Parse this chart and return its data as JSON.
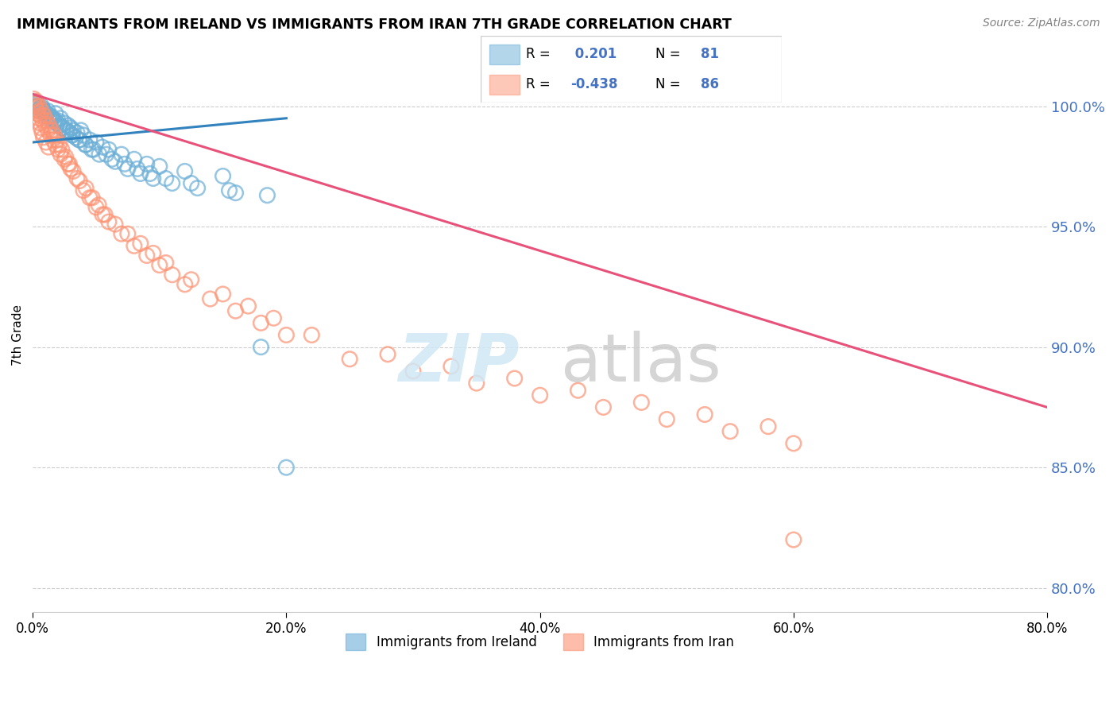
{
  "title": "IMMIGRANTS FROM IRELAND VS IMMIGRANTS FROM IRAN 7TH GRADE CORRELATION CHART",
  "source": "Source: ZipAtlas.com",
  "ylabel": "7th Grade",
  "y_ticks": [
    80.0,
    85.0,
    90.0,
    95.0,
    100.0
  ],
  "xlim": [
    0.0,
    80.0
  ],
  "ylim": [
    79.0,
    102.0
  ],
  "ireland_color": "#6baed6",
  "iran_color": "#fc9272",
  "ireland_R": 0.201,
  "ireland_N": 81,
  "iran_R": -0.438,
  "iran_N": 86,
  "ireland_line_color": "#3182bd",
  "iran_line_color": "#e8527a",
  "legend_ireland": "Immigrants from Ireland",
  "legend_iran": "Immigrants from Iran",
  "ireland_x": [
    0.2,
    0.3,
    0.5,
    0.7,
    0.8,
    1.0,
    1.2,
    1.4,
    1.6,
    1.8,
    2.0,
    2.2,
    2.5,
    2.8,
    3.0,
    3.2,
    3.5,
    3.8,
    4.0,
    4.5,
    5.0,
    5.5,
    6.0,
    7.0,
    8.0,
    9.0,
    10.0,
    12.0,
    15.0,
    18.0,
    20.0,
    0.1,
    0.4,
    0.6,
    0.9,
    1.1,
    1.3,
    1.5,
    1.7,
    1.9,
    2.1,
    2.3,
    2.6,
    2.9,
    3.1,
    3.4,
    3.7,
    4.2,
    4.8,
    5.8,
    6.5,
    7.5,
    8.5,
    9.5,
    11.0,
    13.0,
    16.0,
    0.15,
    0.35,
    0.55,
    0.75,
    0.95,
    1.25,
    1.75,
    2.15,
    2.65,
    3.15,
    3.65,
    4.15,
    4.65,
    5.25,
    6.25,
    7.25,
    8.25,
    9.25,
    10.5,
    12.5,
    15.5,
    18.5,
    2.4,
    2.7
  ],
  "ireland_y": [
    100.0,
    100.1,
    99.8,
    100.0,
    99.9,
    99.7,
    99.8,
    99.6,
    99.5,
    99.7,
    99.4,
    99.5,
    99.3,
    99.2,
    99.1,
    99.0,
    98.9,
    99.0,
    98.8,
    98.6,
    98.5,
    98.3,
    98.2,
    98.0,
    97.8,
    97.6,
    97.5,
    97.3,
    97.1,
    90.0,
    85.0,
    100.2,
    100.0,
    99.9,
    99.8,
    99.7,
    99.6,
    99.5,
    99.4,
    99.3,
    99.2,
    99.1,
    99.0,
    98.9,
    98.8,
    98.7,
    98.6,
    98.4,
    98.2,
    98.0,
    97.7,
    97.4,
    97.2,
    97.0,
    96.8,
    96.6,
    96.4,
    100.1,
    100.0,
    99.9,
    99.8,
    99.7,
    99.5,
    99.4,
    99.2,
    99.0,
    98.8,
    98.6,
    98.4,
    98.2,
    98.0,
    97.8,
    97.6,
    97.4,
    97.2,
    97.0,
    96.8,
    96.5,
    96.3,
    99.1,
    99.0
  ],
  "iran_x": [
    0.2,
    0.4,
    0.6,
    0.8,
    1.0,
    1.2,
    1.4,
    1.6,
    1.8,
    2.0,
    2.2,
    2.5,
    2.8,
    3.0,
    3.5,
    4.0,
    4.5,
    5.0,
    5.5,
    6.0,
    7.0,
    8.0,
    9.0,
    10.0,
    11.0,
    12.0,
    14.0,
    16.0,
    18.0,
    20.0,
    25.0,
    30.0,
    35.0,
    40.0,
    45.0,
    50.0,
    55.0,
    60.0,
    0.3,
    0.5,
    0.7,
    0.9,
    1.1,
    1.3,
    1.5,
    1.7,
    1.9,
    2.1,
    2.3,
    2.6,
    2.9,
    3.2,
    3.7,
    4.2,
    4.7,
    5.2,
    5.7,
    6.5,
    7.5,
    8.5,
    9.5,
    10.5,
    12.5,
    15.0,
    17.0,
    19.0,
    22.0,
    28.0,
    33.0,
    38.0,
    43.0,
    48.0,
    53.0,
    58.0,
    0.1,
    0.15,
    0.25,
    0.35,
    0.45,
    0.55,
    0.65,
    0.75,
    0.85,
    1.05,
    1.25
  ],
  "iran_y": [
    100.0,
    99.8,
    99.6,
    99.4,
    99.2,
    99.0,
    98.8,
    98.6,
    98.4,
    98.2,
    98.0,
    97.8,
    97.6,
    97.4,
    97.0,
    96.5,
    96.2,
    95.8,
    95.5,
    95.2,
    94.7,
    94.2,
    93.8,
    93.4,
    93.0,
    92.6,
    92.0,
    91.5,
    91.0,
    90.5,
    89.5,
    89.0,
    88.5,
    88.0,
    87.5,
    87.0,
    86.5,
    86.0,
    100.2,
    100.0,
    99.8,
    99.6,
    99.4,
    99.2,
    99.0,
    98.8,
    98.6,
    98.4,
    98.2,
    97.9,
    97.6,
    97.3,
    96.9,
    96.6,
    96.2,
    95.9,
    95.5,
    95.1,
    94.7,
    94.3,
    93.9,
    93.5,
    92.8,
    92.2,
    91.7,
    91.2,
    90.5,
    89.7,
    89.2,
    88.7,
    88.2,
    87.7,
    87.2,
    86.7,
    100.3,
    100.1,
    99.9,
    99.7,
    99.5,
    99.3,
    99.1,
    98.9,
    98.7,
    98.5,
    98.3
  ],
  "iran_outlier_x": [
    60.0
  ],
  "iran_outlier_y": [
    82.0
  ],
  "ireland_line_x0": 0.0,
  "ireland_line_y0": 98.5,
  "ireland_line_x1": 20.0,
  "ireland_line_y1": 99.5,
  "iran_line_x0": 0.0,
  "iran_line_y0": 100.5,
  "iran_line_x1": 80.0,
  "iran_line_y1": 87.5
}
